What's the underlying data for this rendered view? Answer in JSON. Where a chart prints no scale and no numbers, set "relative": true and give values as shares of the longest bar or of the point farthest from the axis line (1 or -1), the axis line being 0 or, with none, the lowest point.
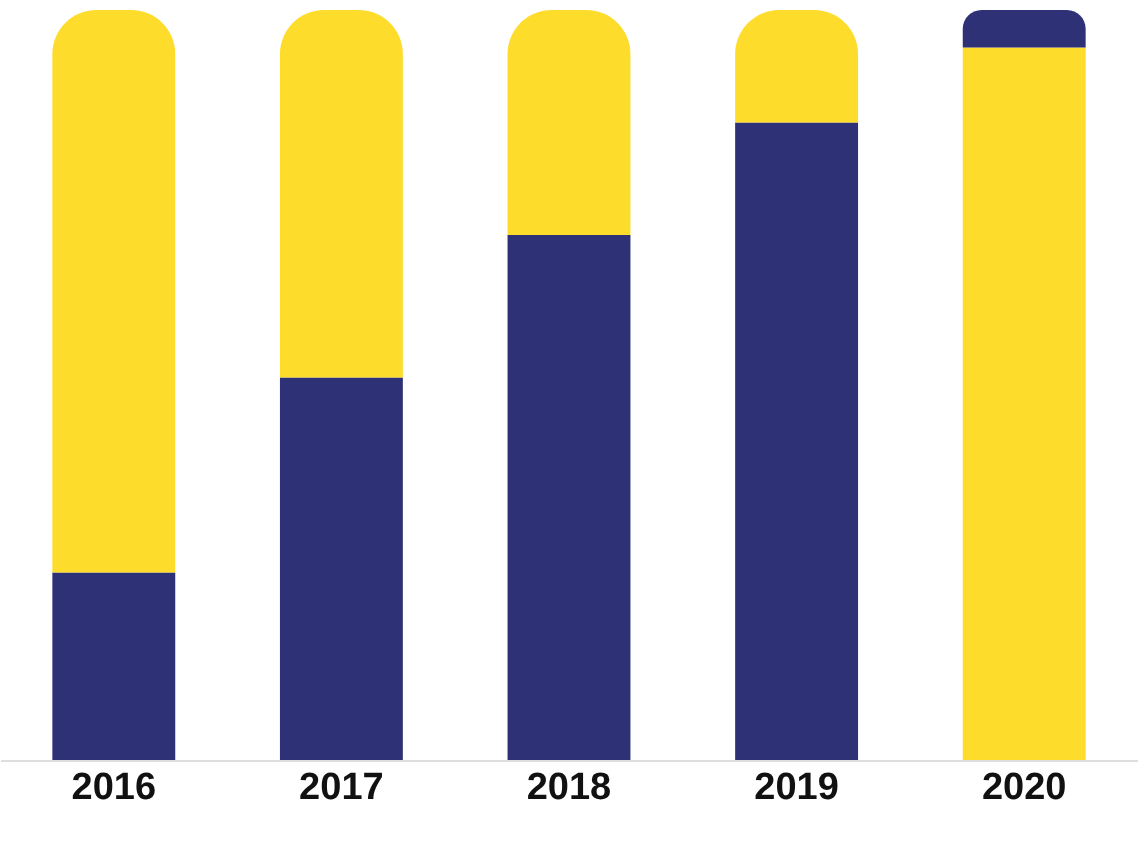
{
  "chart_data": {
    "type": "bar",
    "relative": true,
    "stacked": true,
    "categories": [
      "2016",
      "2017",
      "2018",
      "2019",
      "2020"
    ],
    "series": [
      {
        "color": "#2e3176",
        "values": [
          0.25,
          0.51,
          0.7,
          0.85,
          null
        ]
      },
      {
        "color": "#fddc2b",
        "values": [
          0.75,
          0.49,
          0.3,
          0.15,
          0.95
        ]
      },
      {
        "color": "#2e3176",
        "values": [
          null,
          null,
          null,
          null,
          0.05
        ]
      }
    ]
  }
}
